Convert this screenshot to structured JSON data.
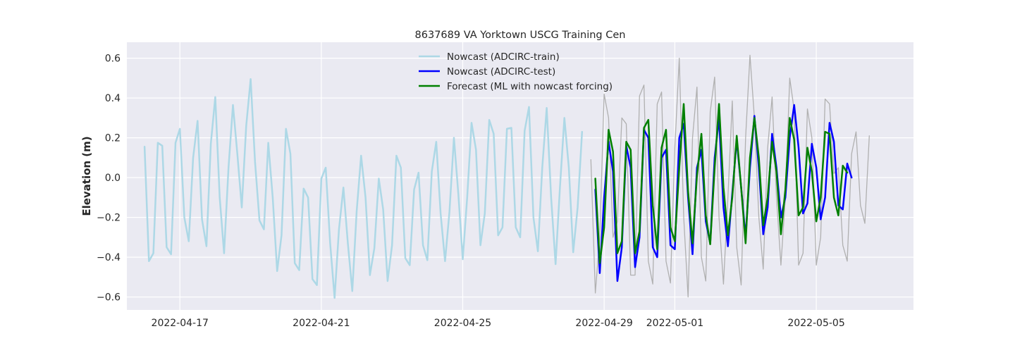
{
  "chart_data": {
    "type": "line",
    "title": "8637689 VA Yorktown USCG Training Cen",
    "xlabel": "",
    "ylabel": "Elevation (m)",
    "x_type": "date",
    "xlim": [
      "2022-04-15T12:00",
      "2022-05-07T18:00"
    ],
    "ylim": [
      -0.665,
      0.68
    ],
    "x_ticks": [
      {
        "value": "2022-04-17T00:00",
        "label": "2022-04-17"
      },
      {
        "value": "2022-04-21T00:00",
        "label": "2022-04-21"
      },
      {
        "value": "2022-04-25T00:00",
        "label": "2022-04-25"
      },
      {
        "value": "2022-04-29T00:00",
        "label": "2022-04-29"
      },
      {
        "value": "2022-05-01T00:00",
        "label": "2022-05-01"
      },
      {
        "value": "2022-05-05T00:00",
        "label": "2022-05-05"
      }
    ],
    "y_ticks": [
      {
        "value": 0.6,
        "label": "0.6"
      },
      {
        "value": 0.4,
        "label": "0.4"
      },
      {
        "value": 0.2,
        "label": "0.2"
      },
      {
        "value": 0.0,
        "label": "0.0"
      },
      {
        "value": -0.2,
        "label": "−0.2"
      },
      {
        "value": -0.4,
        "label": "−0.4"
      },
      {
        "value": -0.6,
        "label": "−0.6"
      }
    ],
    "grid": true,
    "legend_position": "top-center",
    "series": [
      {
        "name": "Nowcast (ADCIRC-train)",
        "color": "#add8e6",
        "line_width": 2.5,
        "start": "2022-04-16T00:00",
        "step_hours": 3,
        "values": [
          0.155,
          -0.42,
          -0.38,
          0.175,
          0.16,
          -0.35,
          -0.385,
          0.175,
          0.245,
          -0.2,
          -0.32,
          0.1,
          0.285,
          -0.21,
          -0.345,
          0.17,
          0.405,
          -0.1,
          -0.38,
          0.05,
          0.365,
          0.12,
          -0.15,
          0.26,
          0.495,
          0.08,
          -0.215,
          -0.26,
          0.175,
          -0.1,
          -0.47,
          -0.29,
          0.245,
          0.12,
          -0.43,
          -0.465,
          -0.055,
          -0.1,
          -0.51,
          -0.54,
          -0.005,
          0.05,
          -0.33,
          -0.605,
          -0.26,
          -0.05,
          -0.33,
          -0.57,
          -0.17,
          0.11,
          -0.1,
          -0.49,
          -0.355,
          -0.005,
          -0.16,
          -0.52,
          -0.34,
          0.11,
          0.05,
          -0.405,
          -0.44,
          -0.06,
          0.025,
          -0.34,
          -0.415,
          0.03,
          0.18,
          -0.18,
          -0.42,
          -0.17,
          0.2,
          -0.08,
          -0.41,
          -0.1,
          0.275,
          0.14,
          -0.34,
          -0.18,
          0.29,
          0.22,
          -0.29,
          -0.25,
          0.245,
          0.25,
          -0.25,
          -0.3,
          0.235,
          0.355,
          -0.2,
          -0.37,
          0.05,
          0.35,
          -0.1,
          -0.435,
          -0.05,
          0.3,
          0.05,
          -0.375,
          -0.15,
          0.23
        ]
      },
      {
        "name": "",
        "color": "#b0b0b0",
        "line_width": 1.3,
        "start": "2022-04-28T15:00",
        "step_hours": 3,
        "values": [
          0.09,
          -0.58,
          -0.3,
          0.42,
          0.3,
          -0.3,
          -0.22,
          0.3,
          0.27,
          -0.49,
          -0.49,
          0.41,
          0.465,
          -0.42,
          -0.535,
          0.37,
          0.43,
          -0.42,
          -0.53,
          0.15,
          0.6,
          -0.2,
          -0.6,
          0.2,
          0.455,
          -0.4,
          -0.52,
          0.33,
          0.505,
          -0.2,
          -0.535,
          -0.1,
          0.385,
          -0.35,
          -0.54,
          0.2,
          0.615,
          0.3,
          -0.2,
          -0.46,
          0.15,
          0.405,
          -0.1,
          -0.44,
          -0.1,
          0.5,
          0.34,
          -0.44,
          -0.38,
          0.345,
          0.2,
          -0.44,
          -0.3,
          0.395,
          0.37,
          0.02,
          0.05,
          -0.34,
          -0.42,
          0.12,
          0.23,
          -0.14,
          -0.23,
          0.21
        ]
      },
      {
        "name": "Nowcast (ADCIRC-test)",
        "color": "#0000ff",
        "line_width": 2.5,
        "start": "2022-04-28T18:00",
        "step_hours": 3,
        "values": [
          -0.06,
          -0.48,
          -0.1,
          0.18,
          0.03,
          -0.52,
          -0.35,
          0.16,
          0.05,
          -0.45,
          -0.3,
          0.24,
          0.2,
          -0.35,
          -0.4,
          0.1,
          0.14,
          -0.34,
          -0.36,
          0.2,
          0.27,
          -0.1,
          -0.385,
          0.05,
          0.14,
          -0.22,
          -0.33,
          0.1,
          0.3,
          -0.15,
          -0.345,
          -0.08,
          0.19,
          -0.05,
          -0.3,
          0.05,
          0.31,
          0.05,
          -0.285,
          -0.15,
          0.22,
          0.05,
          -0.2,
          -0.1,
          0.2,
          0.365,
          0.15,
          -0.18,
          -0.13,
          0.17,
          0.05,
          -0.21,
          -0.1,
          0.275,
          0.18,
          -0.14,
          -0.16,
          0.07,
          0.0
        ]
      },
      {
        "name": "Forecast (ML with nowcast forcing)",
        "color": "#008000",
        "line_width": 2.5,
        "start": "2022-04-28T18:00",
        "step_hours": 3,
        "values": [
          -0.005,
          -0.43,
          -0.25,
          0.24,
          0.13,
          -0.38,
          -0.32,
          0.18,
          0.14,
          -0.38,
          -0.27,
          0.25,
          0.29,
          -0.14,
          -0.36,
          0.15,
          0.24,
          -0.25,
          -0.32,
          0.05,
          0.37,
          -0.07,
          -0.33,
          0.01,
          0.22,
          -0.19,
          -0.335,
          0.05,
          0.37,
          -0.05,
          -0.29,
          -0.1,
          0.21,
          -0.05,
          -0.33,
          0.1,
          0.3,
          0.1,
          -0.24,
          -0.1,
          0.18,
          0.03,
          -0.285,
          -0.06,
          0.3,
          0.19,
          -0.19,
          -0.15,
          0.15,
          0.03,
          -0.22,
          -0.1,
          0.23,
          0.22,
          -0.1,
          -0.19,
          0.06,
          0.025
        ]
      }
    ]
  }
}
